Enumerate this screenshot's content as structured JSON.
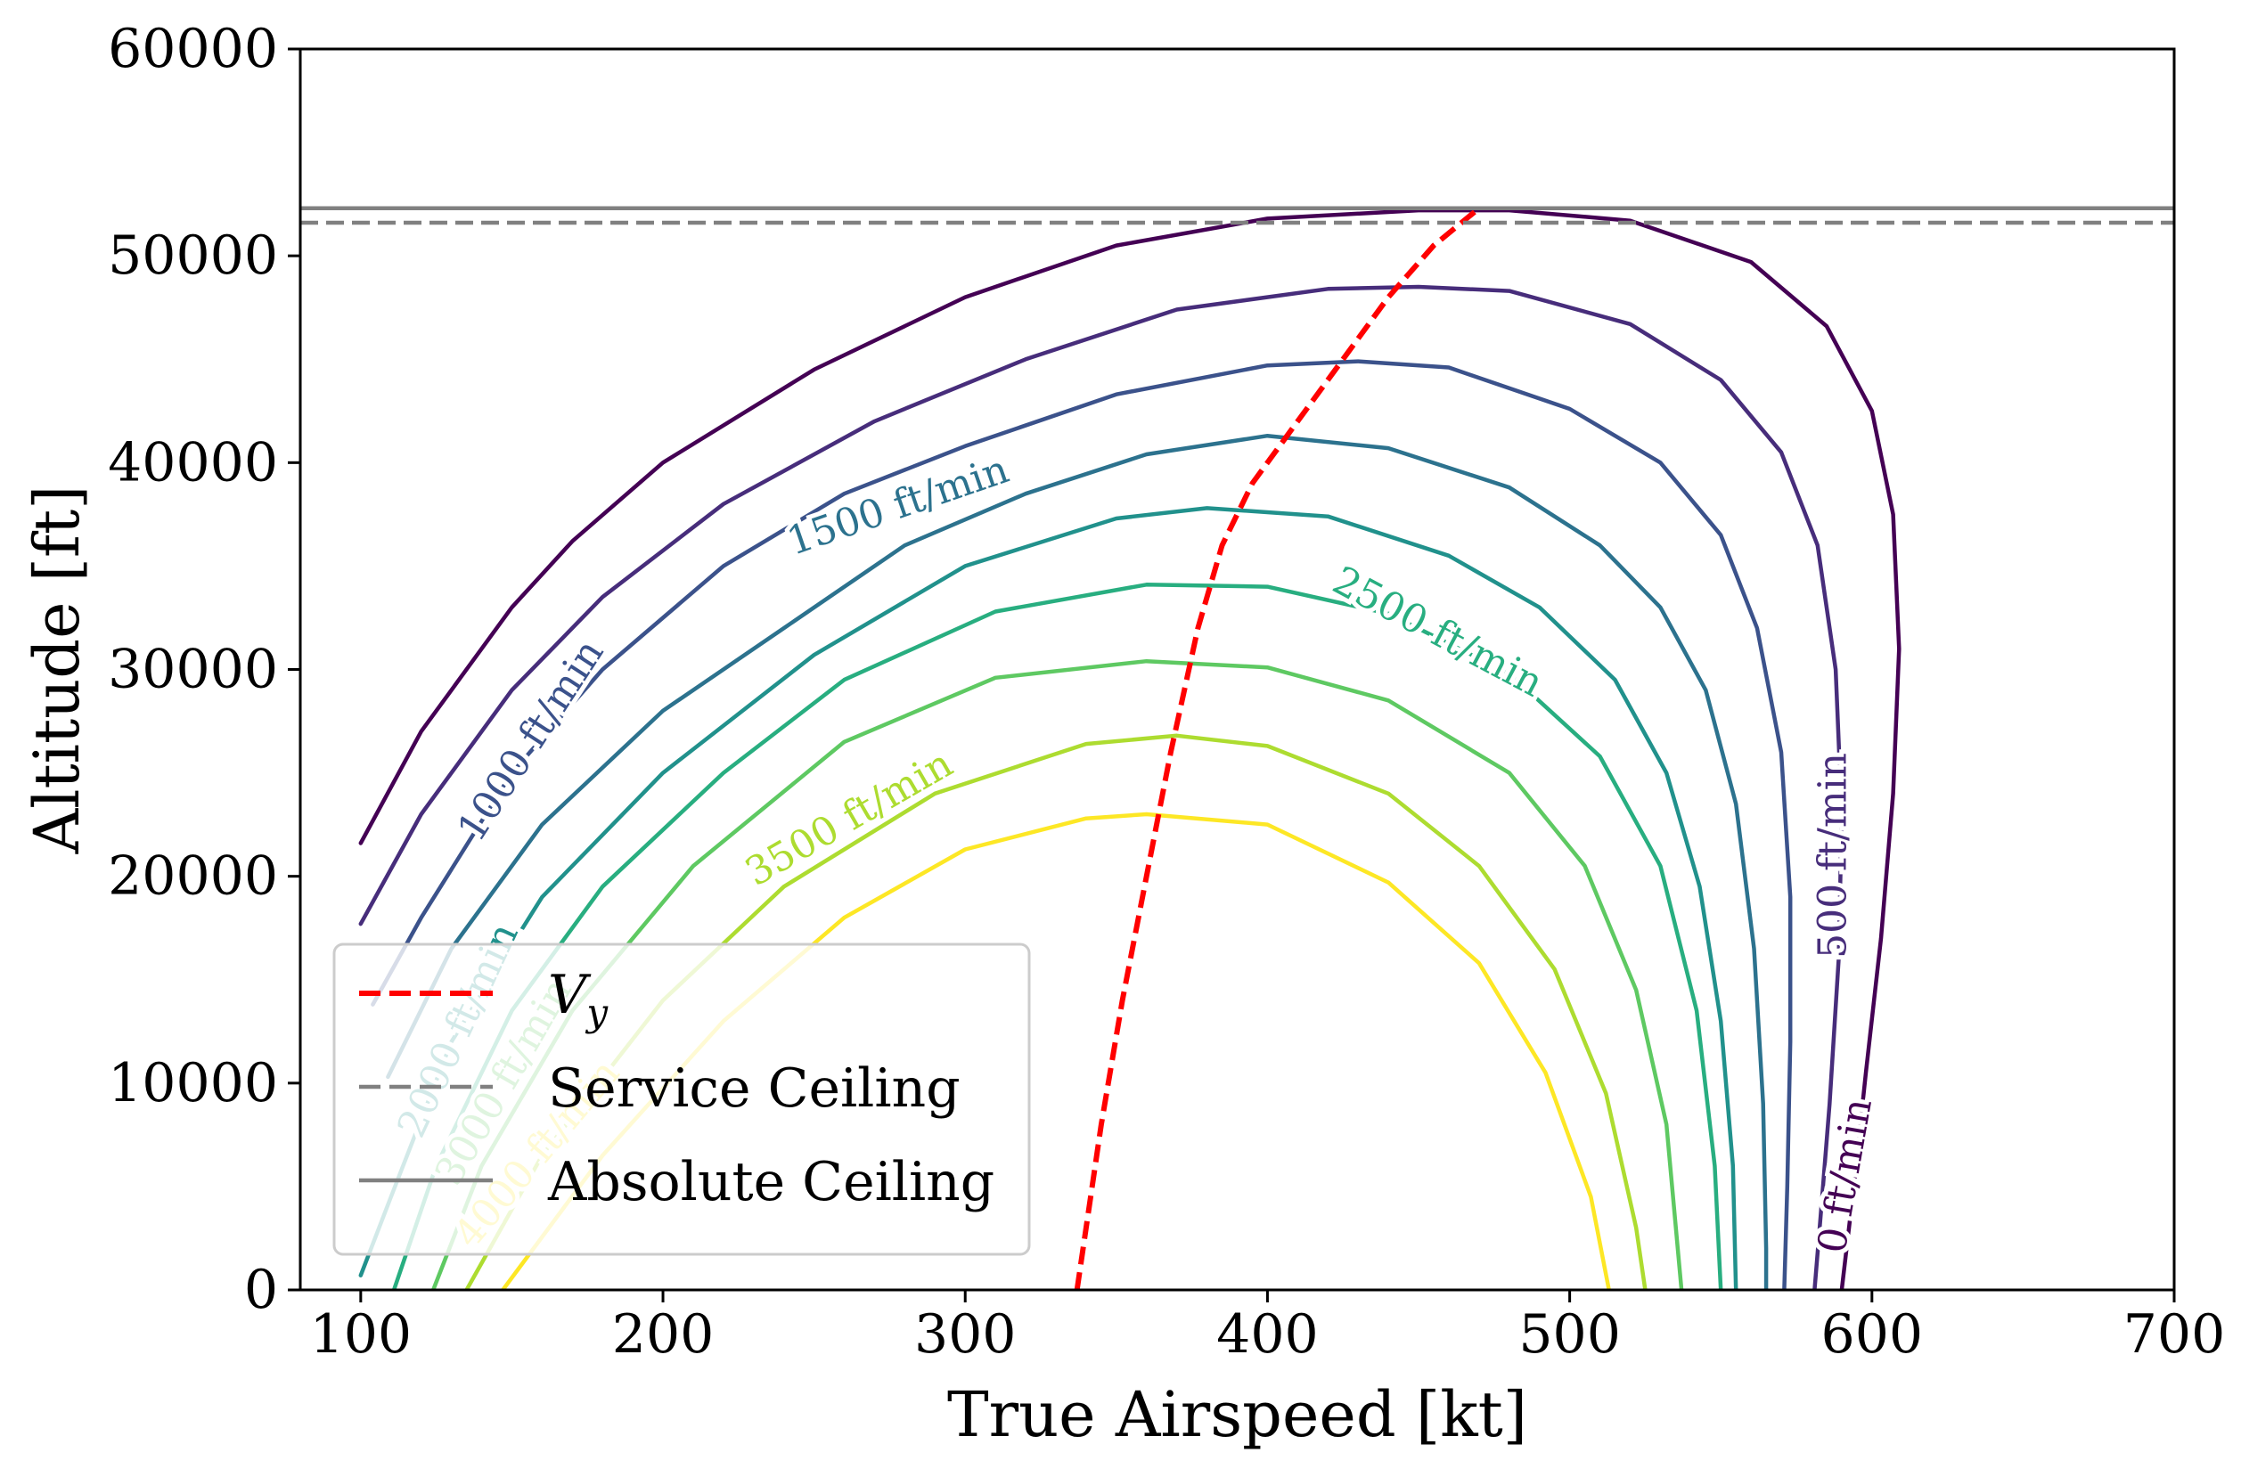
{
  "chart_data": {
    "type": "line",
    "title": "",
    "xlabel": "True Airspeed [kt]",
    "ylabel": "Altitude [ft]",
    "xlim": [
      80,
      700
    ],
    "ylim": [
      0,
      60000
    ],
    "x_ticks": [
      100,
      200,
      300,
      400,
      500,
      600,
      700
    ],
    "y_ticks": [
      0,
      10000,
      20000,
      30000,
      40000,
      50000,
      60000
    ],
    "grid": false,
    "legend_position": "lower-left",
    "contours": [
      {
        "name": "0 ft/min",
        "label": "0 ft/min",
        "color": "#440154",
        "points": [
          [
            100,
            21600
          ],
          [
            120,
            27000
          ],
          [
            150,
            33000
          ],
          [
            170,
            36200
          ],
          [
            200,
            40000
          ],
          [
            250,
            44500
          ],
          [
            300,
            48000
          ],
          [
            350,
            50500
          ],
          [
            400,
            51800
          ],
          [
            450,
            52200
          ],
          [
            480,
            52200
          ],
          [
            520,
            51700
          ],
          [
            560,
            49700
          ],
          [
            585,
            46600
          ],
          [
            600,
            42500
          ],
          [
            607,
            37500
          ],
          [
            609,
            31000
          ],
          [
            607,
            24000
          ],
          [
            603,
            17000
          ],
          [
            598,
            10500
          ],
          [
            594,
            5000
          ],
          [
            590,
            0
          ]
        ]
      },
      {
        "name": "500 ft/min",
        "label": "500 ft/min",
        "color": "#472d7b",
        "points": [
          [
            100,
            17700
          ],
          [
            120,
            23000
          ],
          [
            150,
            29000
          ],
          [
            180,
            33500
          ],
          [
            220,
            38000
          ],
          [
            270,
            42000
          ],
          [
            320,
            45000
          ],
          [
            370,
            47400
          ],
          [
            420,
            48400
          ],
          [
            450,
            48500
          ],
          [
            480,
            48300
          ],
          [
            520,
            46700
          ],
          [
            550,
            44000
          ],
          [
            570,
            40500
          ],
          [
            582,
            36000
          ],
          [
            588,
            30000
          ],
          [
            590,
            23000
          ],
          [
            589,
            16000
          ],
          [
            586,
            9000
          ],
          [
            583,
            3500
          ],
          [
            581,
            0
          ]
        ]
      },
      {
        "name": "1000 ft/min",
        "label": "1000 ft/min",
        "color": "#3b528b",
        "points": [
          [
            104,
            13800
          ],
          [
            120,
            18000
          ],
          [
            150,
            25000
          ],
          [
            180,
            30000
          ],
          [
            220,
            35000
          ],
          [
            260,
            38500
          ],
          [
            300,
            40800
          ],
          [
            350,
            43300
          ],
          [
            400,
            44700
          ],
          [
            430,
            44900
          ],
          [
            460,
            44600
          ],
          [
            500,
            42600
          ],
          [
            530,
            40000
          ],
          [
            550,
            36500
          ],
          [
            562,
            32000
          ],
          [
            570,
            26000
          ],
          [
            573,
            19000
          ],
          [
            573,
            12000
          ],
          [
            572,
            5000
          ],
          [
            571,
            0
          ]
        ]
      },
      {
        "name": "1500 ft/min",
        "label": "1500 ft/min",
        "color": "#2c728e",
        "points": [
          [
            109,
            10300
          ],
          [
            130,
            16500
          ],
          [
            160,
            22500
          ],
          [
            200,
            28000
          ],
          [
            240,
            32000
          ],
          [
            280,
            36000
          ],
          [
            320,
            38500
          ],
          [
            360,
            40400
          ],
          [
            400,
            41300
          ],
          [
            440,
            40700
          ],
          [
            480,
            38800
          ],
          [
            510,
            36000
          ],
          [
            530,
            33000
          ],
          [
            545,
            29000
          ],
          [
            555,
            23500
          ],
          [
            561,
            16500
          ],
          [
            564,
            9000
          ],
          [
            565,
            2000
          ],
          [
            565,
            0
          ]
        ]
      },
      {
        "name": "2000 ft/min",
        "label": "2000 ft/min",
        "color": "#21918c",
        "points": [
          [
            100,
            700
          ],
          [
            110,
            4500
          ],
          [
            130,
            12000
          ],
          [
            160,
            19000
          ],
          [
            200,
            25000
          ],
          [
            250,
            30700
          ],
          [
            300,
            35000
          ],
          [
            350,
            37300
          ],
          [
            380,
            37800
          ],
          [
            420,
            37400
          ],
          [
            460,
            35500
          ],
          [
            490,
            33000
          ],
          [
            515,
            29500
          ],
          [
            532,
            25000
          ],
          [
            543,
            19500
          ],
          [
            550,
            13000
          ],
          [
            554,
            6000
          ],
          [
            555,
            0
          ]
        ]
      },
      {
        "name": "2500 ft/min",
        "label": "2500 ft/min",
        "color": "#28ae80",
        "points": [
          [
            111,
            0
          ],
          [
            125,
            6000
          ],
          [
            150,
            13500
          ],
          [
            180,
            19500
          ],
          [
            220,
            25000
          ],
          [
            260,
            29500
          ],
          [
            310,
            32800
          ],
          [
            360,
            34100
          ],
          [
            400,
            34000
          ],
          [
            440,
            32700
          ],
          [
            480,
            29800
          ],
          [
            510,
            25800
          ],
          [
            530,
            20500
          ],
          [
            542,
            13500
          ],
          [
            548,
            6000
          ],
          [
            550,
            0
          ]
        ]
      },
      {
        "name": "3000 ft/min",
        "label": "3000 ft/min",
        "color": "#5ec962",
        "points": [
          [
            124,
            0
          ],
          [
            140,
            6000
          ],
          [
            170,
            13500
          ],
          [
            210,
            20500
          ],
          [
            260,
            26500
          ],
          [
            310,
            29600
          ],
          [
            360,
            30400
          ],
          [
            400,
            30100
          ],
          [
            440,
            28500
          ],
          [
            480,
            25000
          ],
          [
            505,
            20500
          ],
          [
            522,
            14500
          ],
          [
            532,
            8000
          ],
          [
            537,
            0
          ]
        ]
      },
      {
        "name": "3500 ft/min",
        "label": "3500 ft/min",
        "color": "#addc30",
        "points": [
          [
            135,
            0
          ],
          [
            160,
            6500
          ],
          [
            200,
            14000
          ],
          [
            240,
            19500
          ],
          [
            290,
            24000
          ],
          [
            340,
            26400
          ],
          [
            370,
            26800
          ],
          [
            400,
            26300
          ],
          [
            440,
            24000
          ],
          [
            470,
            20500
          ],
          [
            495,
            15500
          ],
          [
            512,
            9500
          ],
          [
            522,
            3000
          ],
          [
            525,
            0
          ]
        ]
      },
      {
        "name": "4000 ft/min",
        "label": "4000 ft/min",
        "color": "#fde725",
        "points": [
          [
            147,
            0
          ],
          [
            180,
            6500
          ],
          [
            220,
            13000
          ],
          [
            260,
            18000
          ],
          [
            300,
            21300
          ],
          [
            340,
            22800
          ],
          [
            360,
            23000
          ],
          [
            400,
            22500
          ],
          [
            440,
            19700
          ],
          [
            470,
            15800
          ],
          [
            492,
            10500
          ],
          [
            507,
            4500
          ],
          [
            513,
            0
          ]
        ]
      }
    ],
    "series": [
      {
        "name": "V_y",
        "style": "dashed",
        "color": "#ff0000",
        "points": [
          [
            337,
            0
          ],
          [
            340,
            3000
          ],
          [
            345,
            8000
          ],
          [
            352,
            14000
          ],
          [
            360,
            20000
          ],
          [
            368,
            26000
          ],
          [
            377,
            32000
          ],
          [
            385,
            36000
          ],
          [
            395,
            39000
          ],
          [
            410,
            42000
          ],
          [
            425,
            45000
          ],
          [
            440,
            48000
          ],
          [
            455,
            50500
          ],
          [
            470,
            52300
          ]
        ]
      },
      {
        "name": "Service Ceiling",
        "style": "dashed",
        "color": "#808080",
        "y": 51600
      },
      {
        "name": "Absolute Ceiling",
        "style": "solid",
        "color": "#808080",
        "y": 52300
      }
    ],
    "legend": [
      {
        "label_main": "V",
        "label_sub": "y",
        "style": "dashed",
        "color": "#ff0000"
      },
      {
        "label_main": "Service Ceiling",
        "label_sub": "",
        "style": "dashed",
        "color": "#808080"
      },
      {
        "label_main": "Absolute Ceiling",
        "label_sub": "",
        "style": "solid",
        "color": "#808080"
      }
    ],
    "contour_labels": [
      {
        "text": "1000 ft/min",
        "color": "#3b528b",
        "x": 157,
        "y": 26500,
        "angle": -57
      },
      {
        "text": "1500 ft/min",
        "color": "#2c728e",
        "x": 278,
        "y": 37800,
        "angle": -19
      },
      {
        "text": "2500 ft/min",
        "color": "#28ae80",
        "x": 456,
        "y": 31700,
        "angle": 28
      },
      {
        "text": "3500 ft/min",
        "color": "#addc30",
        "x": 262,
        "y": 22700,
        "angle": -30
      },
      {
        "text": "500 ft/min",
        "color": "#472d7b",
        "x": 588,
        "y": 21000,
        "angle": -90
      },
      {
        "text": "0 ft/min",
        "color": "#440154",
        "x": 592,
        "y": 5500,
        "angle": -80
      },
      {
        "text": "2000 ft/min",
        "color": "#21918c",
        "x": 133,
        "y": 12500,
        "angle": -65
      },
      {
        "text": "3000 ft/min",
        "color": "#5ec962",
        "x": 148,
        "y": 10000,
        "angle": -60
      },
      {
        "text": "4000 ft/min",
        "color": "#fde725",
        "x": 159,
        "y": 6500,
        "angle": -50
      }
    ]
  }
}
